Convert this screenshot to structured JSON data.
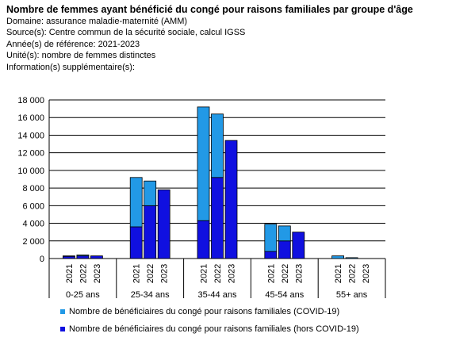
{
  "header": {
    "title": "Nombre de femmes ayant bénéficié du congé pour raisons familiales par groupe d'âge",
    "domain": "Domaine: assurance maladie-maternité (AMM)",
    "source": "Source(s): Centre commun de la sécurité sociale, calcul IGSS",
    "year": "Année(s) de référence: 2021-2023",
    "unit": "Unité(s): nombre de femmes distinctes",
    "info": "Information(s) supplémentaire(s):"
  },
  "colors": {
    "covid": "#2299e6",
    "hors_covid": "#1010e0",
    "grid": "#000000"
  },
  "chart_data": {
    "type": "bar",
    "stacked": true,
    "groups": [
      "0-25 ans",
      "25-34 ans",
      "35-44 ans",
      "45-54 ans",
      "55+ ans"
    ],
    "years": [
      "2021",
      "2022",
      "2023"
    ],
    "series": [
      {
        "name": "Nombre de bénéficiaires du congé pour raisons familiales (hors COVID-19)",
        "values": [
          [
            250,
            300,
            300
          ],
          [
            3600,
            6000,
            7800
          ],
          [
            4300,
            9200,
            13400
          ],
          [
            800,
            2000,
            3000
          ],
          [
            0,
            0,
            0
          ]
        ]
      },
      {
        "name": "Nombre de bénéficiaires du congé pour raisons familiales (COVID-19)",
        "values": [
          [
            50,
            100,
            0
          ],
          [
            5600,
            2800,
            0
          ],
          [
            12900,
            7200,
            0
          ],
          [
            3100,
            1700,
            0
          ],
          [
            300,
            100,
            0
          ]
        ]
      }
    ],
    "legend_order": [
      1,
      0
    ],
    "ylim": [
      0,
      18000
    ],
    "yticks": [
      "0",
      "2 000",
      "4 000",
      "6 000",
      "8 000",
      "10 000",
      "12 000",
      "14 000",
      "16 000",
      "18 000"
    ],
    "grid": true,
    "legend_position": "bottom"
  }
}
